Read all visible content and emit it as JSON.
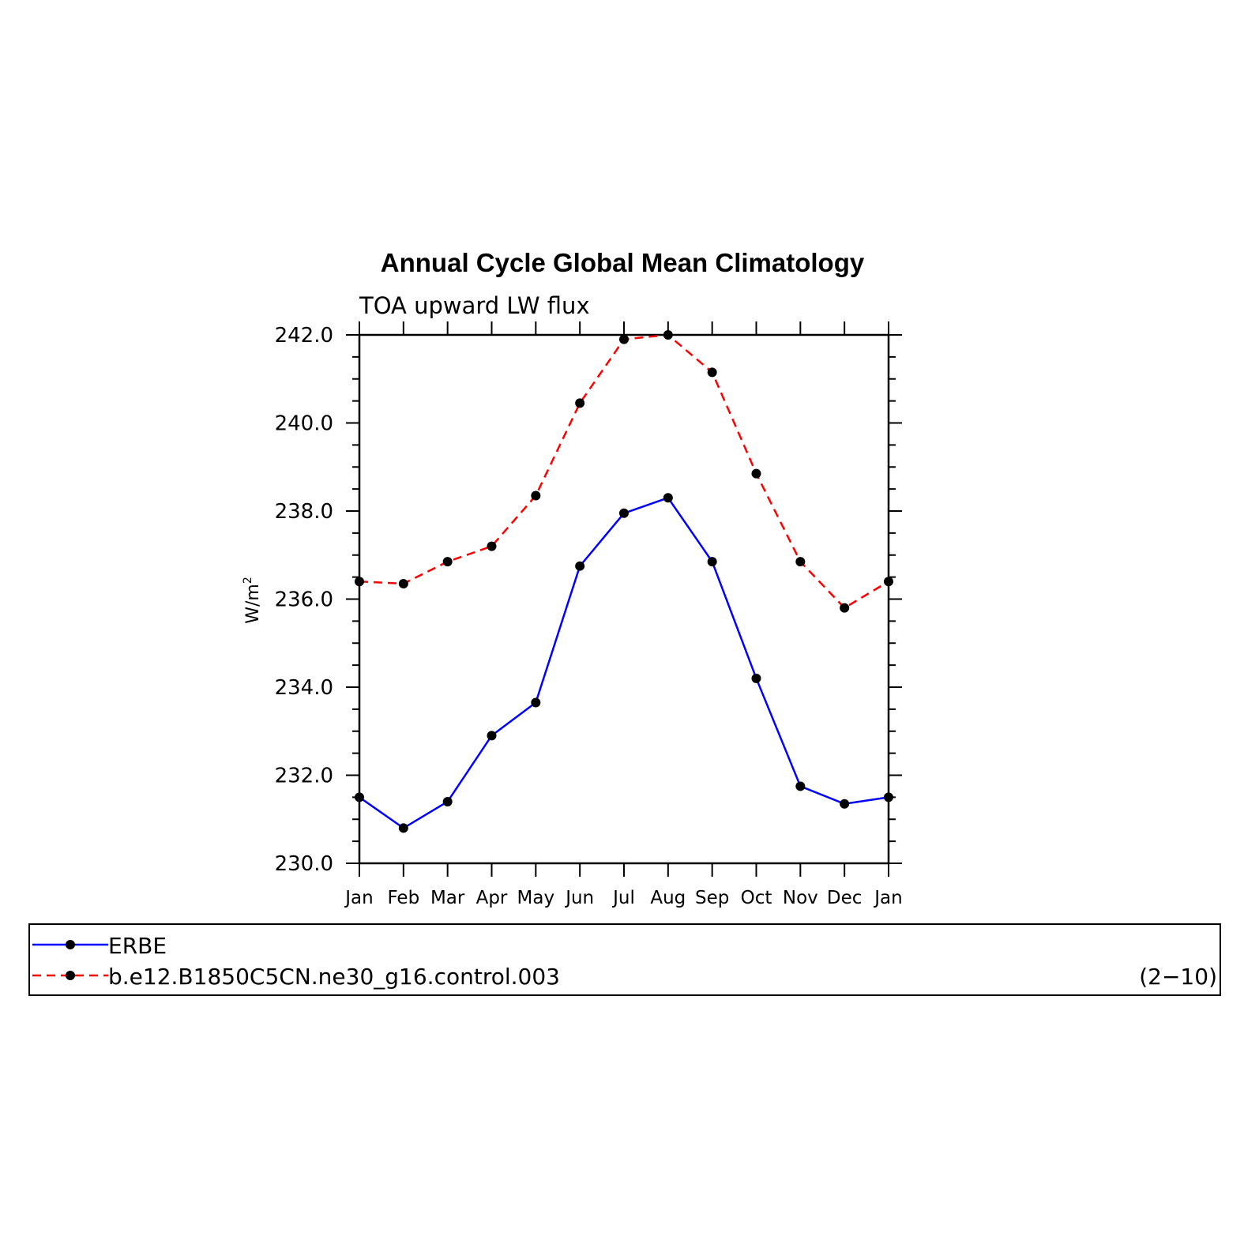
{
  "chart_data": {
    "type": "line",
    "title": "Annual Cycle Global Mean Climatology",
    "subtitle": "TOA upward LW flux",
    "ylabel": "W/m",
    "ylabel_superscript": "2",
    "xlabel": "",
    "ylim": [
      230,
      242
    ],
    "yticks": [
      "230.0",
      "232.0",
      "234.0",
      "236.0",
      "238.0",
      "240.0",
      "242.0"
    ],
    "categories": [
      "Jan",
      "Feb",
      "Mar",
      "Apr",
      "May",
      "Jun",
      "Jul",
      "Aug",
      "Sep",
      "Oct",
      "Nov",
      "Dec",
      "Jan"
    ],
    "series": [
      {
        "name": "ERBE",
        "color": "#0000ff",
        "style": "solid",
        "values": [
          231.5,
          230.8,
          231.4,
          232.9,
          233.65,
          236.75,
          237.95,
          238.3,
          236.85,
          234.2,
          231.75,
          231.35,
          231.5
        ]
      },
      {
        "name": "b.e12.B1850C5CN.ne30_g16.control.003",
        "color": "#ff0000",
        "style": "dashed",
        "values": [
          236.4,
          236.35,
          236.85,
          237.2,
          238.35,
          240.45,
          241.9,
          242.0,
          241.15,
          238.85,
          236.85,
          235.8,
          236.4
        ]
      }
    ],
    "grid": false,
    "legend_position": "bottom"
  },
  "legend": {
    "note": "(2−10)"
  }
}
